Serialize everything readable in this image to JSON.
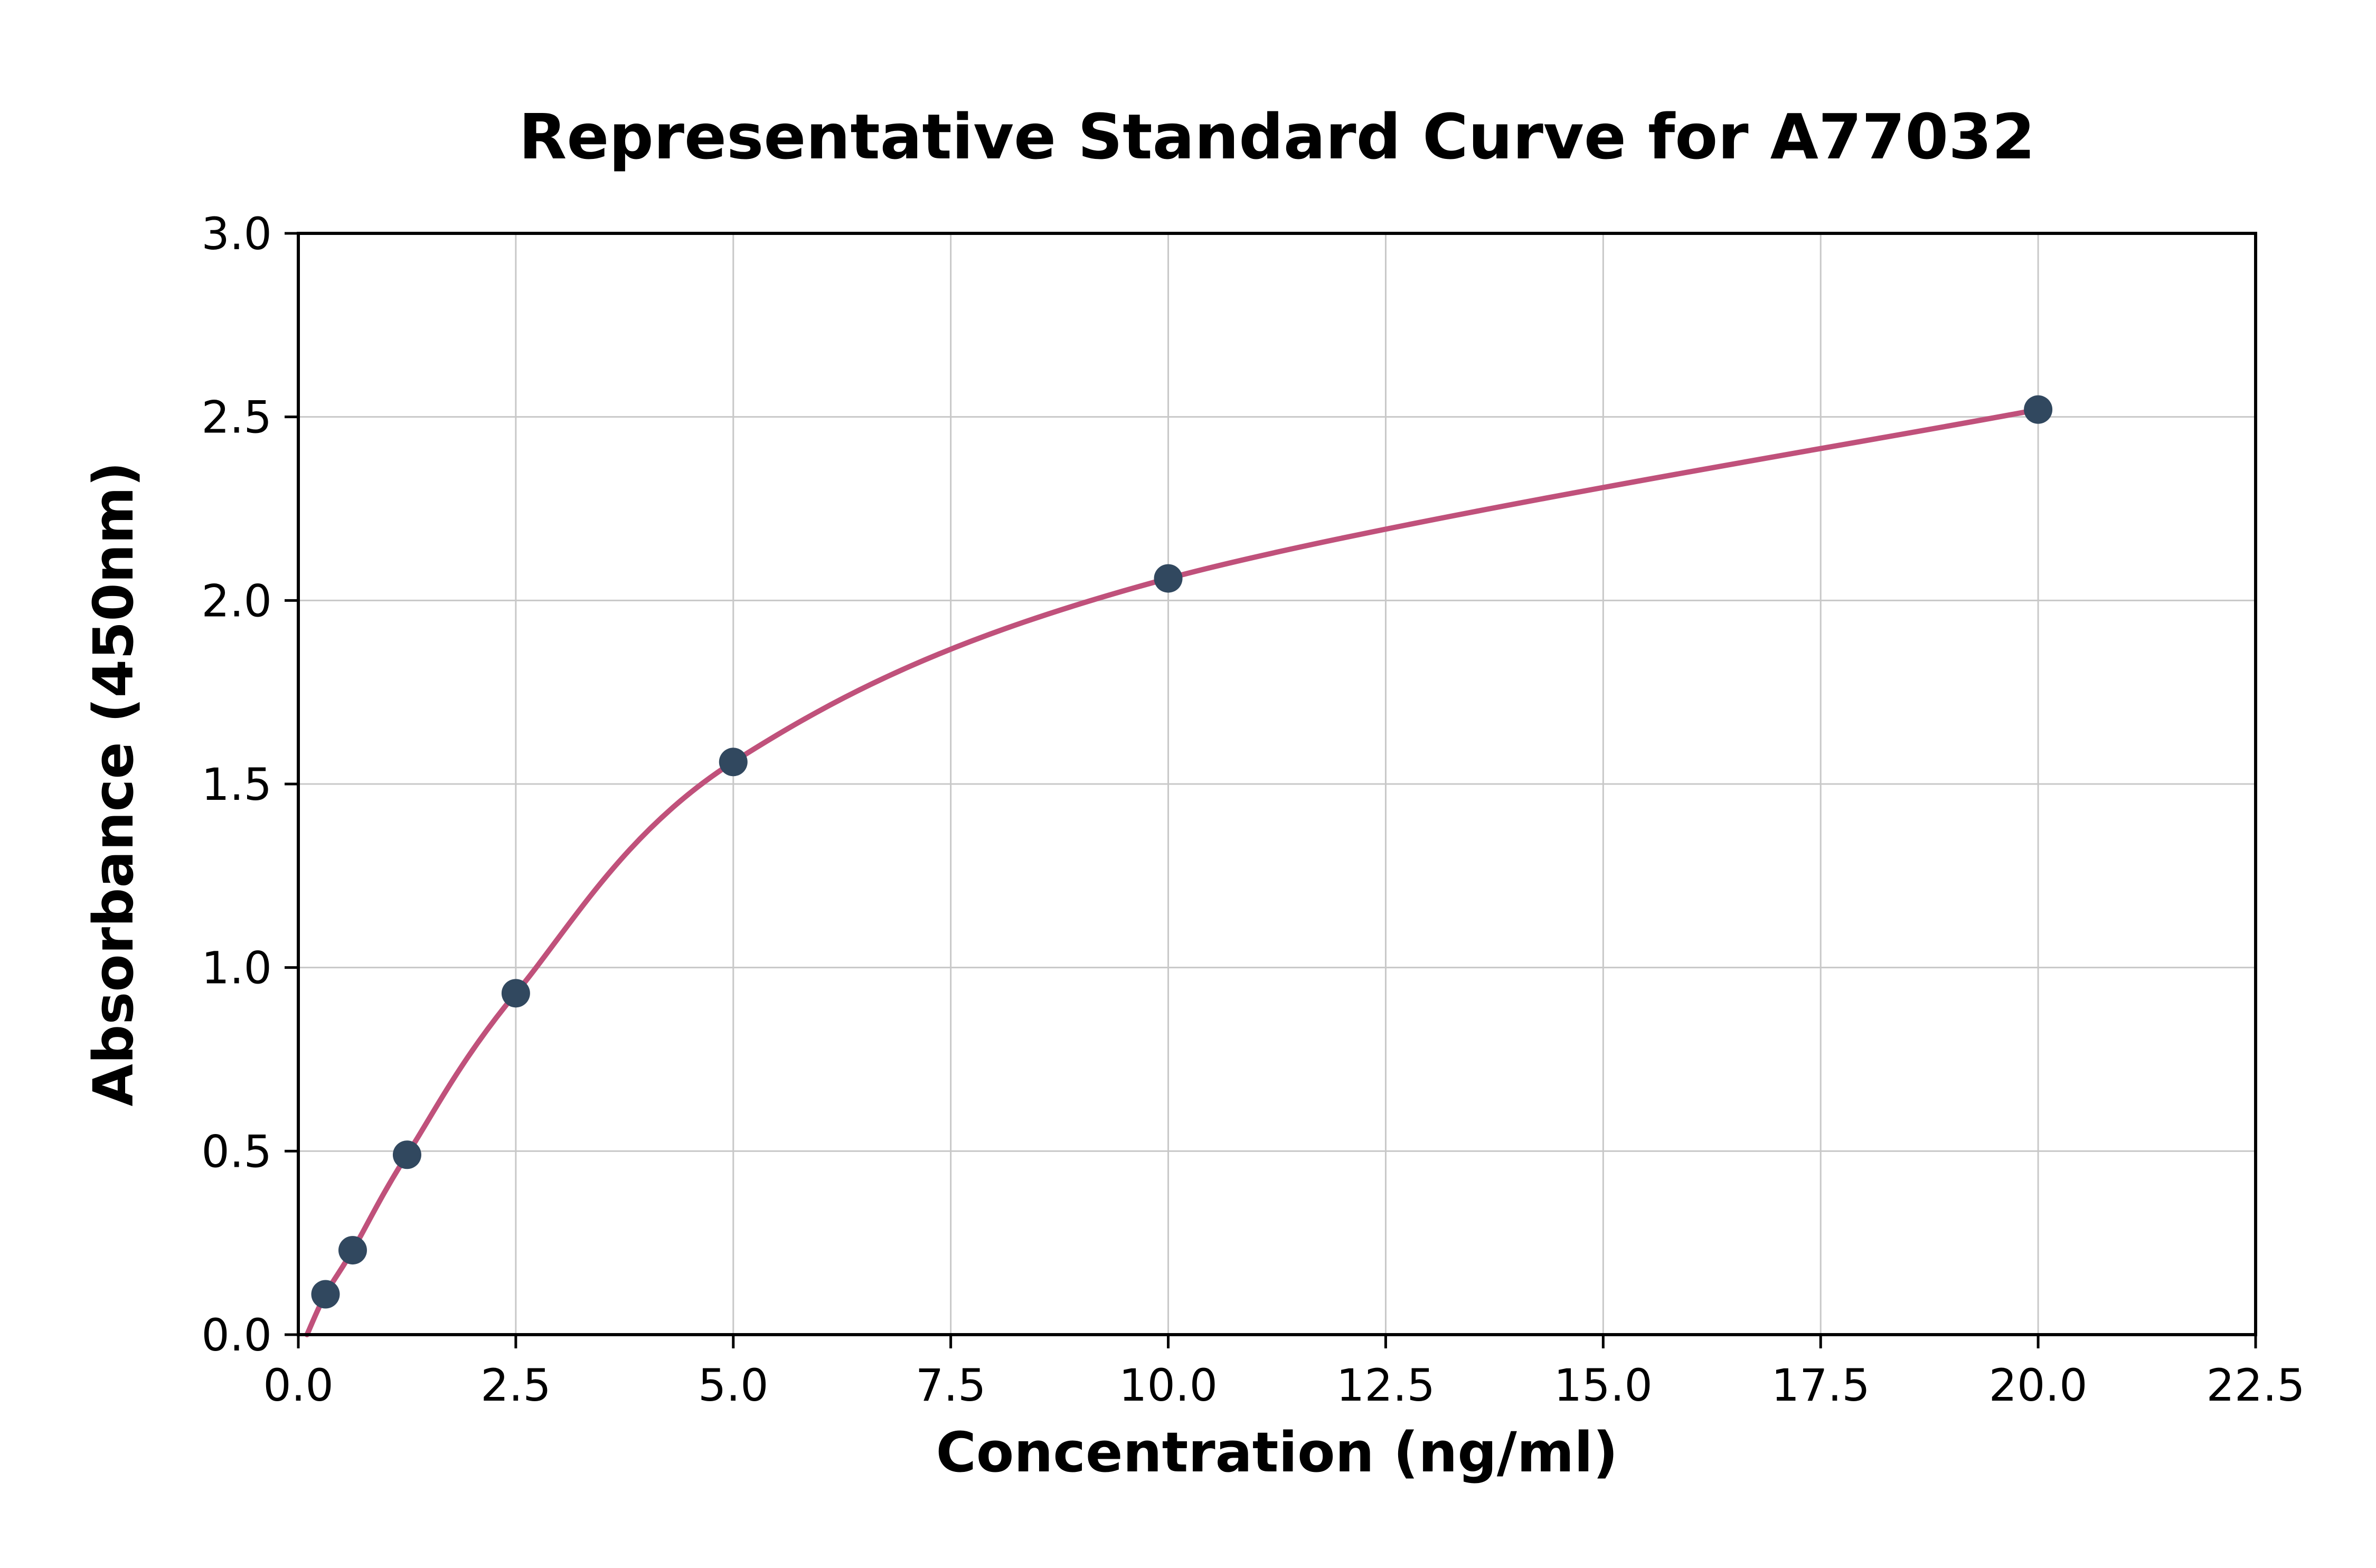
{
  "chart_data": {
    "type": "scatter",
    "title": "Representative Standard Curve for A77032",
    "xlabel": "Concentration (ng/ml)",
    "ylabel": "Absorbance (450nm)",
    "xlim": [
      0,
      22.5
    ],
    "ylim": [
      0,
      3.0
    ],
    "grid": true,
    "legend": "none",
    "x_ticks": [
      0.0,
      2.5,
      5.0,
      7.5,
      10.0,
      12.5,
      15.0,
      17.5,
      20.0,
      22.5
    ],
    "x_tick_labels": [
      "0.0",
      "2.5",
      "5.0",
      "7.5",
      "10.0",
      "12.5",
      "15.0",
      "17.5",
      "20.0",
      "22.5"
    ],
    "y_ticks": [
      0.0,
      0.5,
      1.0,
      1.5,
      2.0,
      2.5,
      3.0
    ],
    "y_tick_labels": [
      "0.0",
      "0.5",
      "1.0",
      "1.5",
      "2.0",
      "2.5",
      "3.0"
    ],
    "points": [
      {
        "x": 0.3125,
        "y": 0.11
      },
      {
        "x": 0.625,
        "y": 0.23
      },
      {
        "x": 1.25,
        "y": 0.49
      },
      {
        "x": 2.5,
        "y": 0.93
      },
      {
        "x": 5.0,
        "y": 1.56
      },
      {
        "x": 10.0,
        "y": 2.06
      },
      {
        "x": 20.0,
        "y": 2.52
      }
    ],
    "curve_start": {
      "x": 0.1,
      "y": 0.0
    },
    "colors": {
      "curve": "#c0517b",
      "marker": "#31485f",
      "grid": "#c8c8c8",
      "axis": "#000000",
      "background": "#ffffff"
    }
  }
}
